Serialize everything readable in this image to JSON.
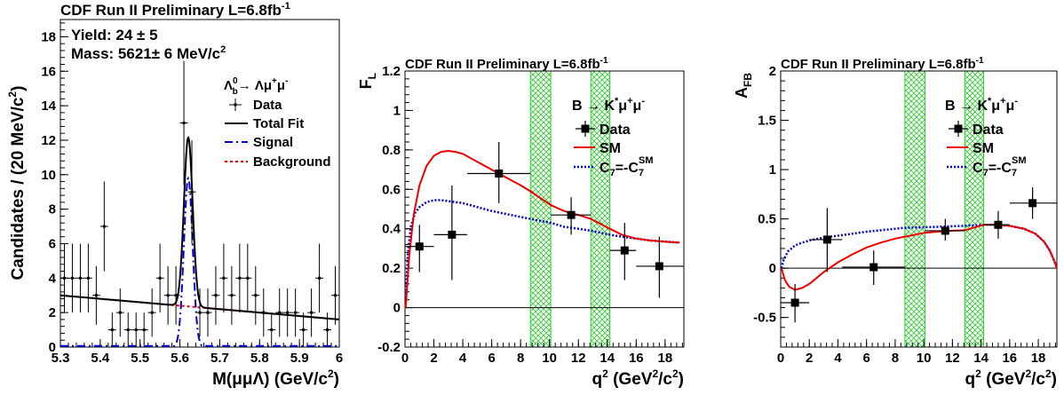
{
  "chart_data": [
    {
      "type": "scatter",
      "title": "CDF Run II Preliminary L=6.8fb",
      "title_sup": "-1",
      "xlabel": "M(μμΛ) (GeV/c",
      "xlabel_sup": "2",
      "xlabel_end": ")",
      "ylabel": "Candidates / (20 MeV/c",
      "ylabel_sup": "2",
      "ylabel_end": ")",
      "xlim": [
        5.3,
        6.0
      ],
      "ylim": [
        0,
        19
      ],
      "xticks": [
        5.3,
        5.4,
        5.5,
        5.6,
        5.7,
        5.8,
        5.9,
        6.0
      ],
      "xtick_labels": [
        "5.3",
        "5.4",
        "5.5",
        "5.6",
        "5.7",
        "5.8",
        "5.9",
        "6"
      ],
      "yticks": [
        0,
        2,
        4,
        6,
        8,
        10,
        12,
        14,
        16,
        18
      ],
      "ytick_labels": [
        "0",
        "2",
        "4",
        "6",
        "8",
        "10",
        "12",
        "14",
        "16",
        "18"
      ],
      "annotations": [
        {
          "text": "Yield: 24 ± 5"
        },
        {
          "text": "Mass: 5621± 6 MeV/c",
          "sup": "2"
        }
      ],
      "legend_header": "Λ⁰b→ Λμ⁺μ⁻",
      "legend_header_parts": {
        "a": "Λ",
        "sup": "0",
        "sub": "b",
        "b": "→ Λμ",
        "sup2": "+",
        "c": "μ",
        "sup3": "-"
      },
      "legend": [
        "Data",
        "Total Fit",
        "Signal",
        "Background"
      ],
      "legend_placement": "top-right",
      "colors": {
        "data": "#000000",
        "total": "#000000",
        "signal": "#0000dd",
        "background": "#ee0000"
      },
      "series": [
        {
          "name": "Data",
          "kind": "points",
          "x": [
            5.31,
            5.33,
            5.35,
            5.37,
            5.39,
            5.41,
            5.43,
            5.45,
            5.47,
            5.49,
            5.51,
            5.53,
            5.55,
            5.57,
            5.59,
            5.61,
            5.63,
            5.65,
            5.67,
            5.69,
            5.71,
            5.73,
            5.75,
            5.77,
            5.79,
            5.81,
            5.83,
            5.85,
            5.87,
            5.89,
            5.91,
            5.93,
            5.95,
            5.97,
            5.99
          ],
          "y": [
            4,
            4,
            4,
            4,
            3,
            7,
            1,
            2,
            1,
            1,
            1,
            2,
            4,
            3,
            3,
            13,
            9,
            2,
            2,
            3,
            4,
            3,
            4,
            4,
            3,
            2,
            1,
            2,
            2,
            2,
            1,
            2,
            4,
            1,
            3
          ],
          "yerr": [
            2,
            2,
            2,
            2,
            1.7,
            2.6,
            1,
            1.4,
            1,
            1,
            1,
            1.4,
            2,
            1.7,
            1.7,
            3.6,
            3,
            1.4,
            1.4,
            1.7,
            2,
            1.7,
            2,
            2,
            1.7,
            1.4,
            1,
            1.4,
            1.4,
            1.4,
            1,
            1.4,
            2,
            1,
            1.7
          ],
          "xerr": 0.01
        },
        {
          "name": "Total Fit",
          "kind": "gauss_plus_linear",
          "mean": 5.621,
          "sigma": 0.011,
          "amplitude": 9.8,
          "bkg_at_5.3": 3.0,
          "bkg_at_6.0": 1.6
        },
        {
          "name": "Signal",
          "kind": "gaussian",
          "mean": 5.621,
          "sigma": 0.011,
          "amplitude": 9.8
        },
        {
          "name": "Background",
          "kind": "linear",
          "y_at_5.3": 3.0,
          "y_at_6.0": 1.6
        }
      ]
    },
    {
      "type": "scatter",
      "title": "CDF Run II Preliminary L=6.8fb",
      "title_sup": "-1",
      "ylabel": "F",
      "ylabel_sub": "L",
      "xlabel": "q",
      "xlabel_sup": "2",
      "xlabel_end": " (GeV",
      "xlabel_sup2": "2",
      "xlabel_end2": "/c",
      "xlabel_sup3": "2",
      "xlabel_end3": ")",
      "xlim": [
        0,
        19.3
      ],
      "ylim": [
        -0.2,
        1.2
      ],
      "xticks": [
        0,
        2,
        4,
        6,
        8,
        10,
        12,
        14,
        16,
        18
      ],
      "xtick_labels": [
        "0",
        "2",
        "4",
        "6",
        "8",
        "10",
        "12",
        "14",
        "16",
        "18"
      ],
      "yticks": [
        -0.2,
        0,
        0.2,
        0.4,
        0.6,
        0.8,
        1.0,
        1.2
      ],
      "ytick_labels": [
        "-0.2",
        "0",
        "0.2",
        "0.4",
        "0.6",
        "0.8",
        "1",
        "1.2"
      ],
      "legend_header_parts": {
        "a": "B → K",
        "sup": "*",
        "b": "μ",
        "sup2": "+",
        "c": "μ",
        "sup3": "-"
      },
      "legend": [
        "Data",
        "SM",
        "C7=-C7SM"
      ],
      "legend_c7_parts": {
        "a": "C",
        "sub": "7",
        "b": "=-C",
        "sub2": "7",
        "sup": "SM"
      },
      "legend_placement": "top-right",
      "veto_bands": [
        [
          8.68,
          10.09
        ],
        [
          12.86,
          14.18
        ]
      ],
      "colors": {
        "data": "#000000",
        "sm": "#ee0000",
        "c7": "#0000cc",
        "band": "#33cc33"
      },
      "series": [
        {
          "name": "Data",
          "kind": "points",
          "x": [
            1.0,
            3.25,
            6.5,
            11.5,
            15.2,
            17.6
          ],
          "y": [
            0.31,
            0.37,
            0.68,
            0.47,
            0.29,
            0.21
          ],
          "xlo": [
            0,
            2,
            4.3,
            10.09,
            14.18,
            16
          ],
          "xhi": [
            2,
            4.3,
            8.68,
            12.86,
            16,
            19.3
          ],
          "ylo": [
            0.18,
            0.14,
            0.53,
            0.37,
            0.14,
            0.05
          ],
          "yhi": [
            0.42,
            0.62,
            0.84,
            0.56,
            0.43,
            0.36
          ]
        },
        {
          "name": "SM",
          "kind": "curve",
          "x": [
            0.05,
            0.3,
            0.6,
            1.0,
            1.5,
            2.0,
            2.5,
            3.0,
            3.5,
            4.0,
            5.0,
            6.0,
            7.0,
            8.0,
            8.68,
            10.09,
            11.0,
            12.0,
            12.86,
            14.18,
            15.0,
            16.0,
            17.0,
            18.0,
            19.0
          ],
          "y": [
            0.0,
            0.27,
            0.47,
            0.62,
            0.72,
            0.77,
            0.79,
            0.795,
            0.79,
            0.78,
            0.74,
            0.7,
            0.66,
            0.62,
            0.59,
            0.52,
            0.49,
            0.47,
            0.45,
            0.4,
            0.37,
            0.35,
            0.34,
            0.335,
            0.33
          ]
        },
        {
          "name": "C7=-C7SM",
          "kind": "curve",
          "x": [
            0.05,
            0.2,
            0.4,
            0.7,
            1.0,
            1.5,
            2.0,
            2.5,
            3.0,
            4.0,
            5.0,
            6.0,
            7.0,
            8.0,
            8.68,
            10.09,
            11.0,
            12.0,
            12.86,
            14.18,
            15.0,
            16.0,
            17.0,
            18.0,
            19.0
          ],
          "y": [
            0.05,
            0.28,
            0.41,
            0.48,
            0.51,
            0.535,
            0.545,
            0.545,
            0.54,
            0.53,
            0.51,
            0.49,
            0.475,
            0.46,
            0.45,
            0.43,
            0.41,
            0.4,
            0.39,
            0.37,
            0.36,
            0.35,
            0.34,
            0.335,
            0.33
          ]
        }
      ]
    },
    {
      "type": "scatter",
      "title": "CDF Run II Preliminary L=6.8fb",
      "title_sup": "-1",
      "ylabel": "A",
      "ylabel_sub": "FB",
      "xlabel": "q",
      "xlabel_sup": "2",
      "xlabel_end": " (GeV",
      "xlabel_sup2": "2",
      "xlabel_end2": "/c",
      "xlabel_sup3": "2",
      "xlabel_end3": ")",
      "xlim": [
        0,
        19.3
      ],
      "ylim": [
        -0.8,
        2.0
      ],
      "xticks": [
        0,
        2,
        4,
        6,
        8,
        10,
        12,
        14,
        16,
        18
      ],
      "xtick_labels": [
        "0",
        "2",
        "4",
        "6",
        "8",
        "10",
        "12",
        "14",
        "16",
        "18"
      ],
      "yticks": [
        -0.5,
        0,
        0.5,
        1.0,
        1.5,
        2.0
      ],
      "ytick_labels": [
        "-0.5",
        "0",
        "0.5",
        "1",
        "1.5",
        "2"
      ],
      "legend_header_parts": {
        "a": "B → K",
        "sup": "*",
        "b": "μ",
        "sup2": "+",
        "c": "μ",
        "sup3": "-"
      },
      "legend": [
        "Data",
        "SM",
        "C7=-C7SM"
      ],
      "legend_c7_parts": {
        "a": "C",
        "sub": "7",
        "b": "=-C",
        "sub2": "7",
        "sup": "SM"
      },
      "legend_placement": "top-right",
      "veto_bands": [
        [
          8.68,
          10.09
        ],
        [
          12.86,
          14.18
        ]
      ],
      "colors": {
        "data": "#000000",
        "sm": "#ee0000",
        "c7": "#0000cc",
        "band": "#33cc33"
      },
      "series": [
        {
          "name": "Data",
          "kind": "points",
          "x": [
            1.0,
            3.25,
            6.5,
            11.5,
            15.2,
            17.6
          ],
          "y": [
            -0.35,
            0.29,
            0.01,
            0.38,
            0.44,
            0.66
          ],
          "xlo": [
            0,
            2,
            4.3,
            10.09,
            14.18,
            16
          ],
          "xhi": [
            2,
            4.3,
            8.68,
            12.86,
            16,
            19.3
          ],
          "ylo": [
            -0.55,
            -0.04,
            -0.17,
            0.28,
            0.3,
            0.5
          ],
          "yhi": [
            -0.16,
            0.61,
            0.18,
            0.5,
            0.58,
            0.82
          ]
        },
        {
          "name": "SM",
          "kind": "curve",
          "x": [
            0.05,
            0.3,
            0.6,
            1.0,
            1.5,
            2.0,
            2.5,
            3.0,
            4.0,
            5.0,
            6.0,
            7.0,
            8.0,
            8.68,
            10.09,
            11.0,
            12.0,
            12.86,
            14.18,
            15.0,
            16.0,
            17.0,
            17.8,
            18.4,
            18.8,
            19.1,
            19.3
          ],
          "y": [
            0.0,
            -0.12,
            -0.19,
            -0.22,
            -0.2,
            -0.16,
            -0.1,
            -0.04,
            0.06,
            0.14,
            0.21,
            0.26,
            0.3,
            0.32,
            0.36,
            0.37,
            0.38,
            0.385,
            0.44,
            0.44,
            0.43,
            0.4,
            0.35,
            0.27,
            0.18,
            0.08,
            0.0
          ]
        },
        {
          "name": "C7=-C7SM",
          "kind": "curve",
          "x": [
            0.05,
            0.2,
            0.5,
            1.0,
            1.5,
            2.0,
            3.0,
            4.0,
            5.0,
            6.0,
            7.0,
            8.0,
            8.68,
            10.09,
            11.0,
            12.0,
            12.86,
            14.18,
            15.0,
            16.0,
            17.0,
            17.8,
            18.4,
            18.8,
            19.1,
            19.3
          ],
          "y": [
            0.0,
            0.08,
            0.17,
            0.23,
            0.26,
            0.28,
            0.31,
            0.33,
            0.35,
            0.37,
            0.385,
            0.4,
            0.41,
            0.415,
            0.42,
            0.425,
            0.43,
            0.44,
            0.44,
            0.43,
            0.4,
            0.35,
            0.27,
            0.18,
            0.08,
            0.0
          ]
        }
      ]
    }
  ]
}
